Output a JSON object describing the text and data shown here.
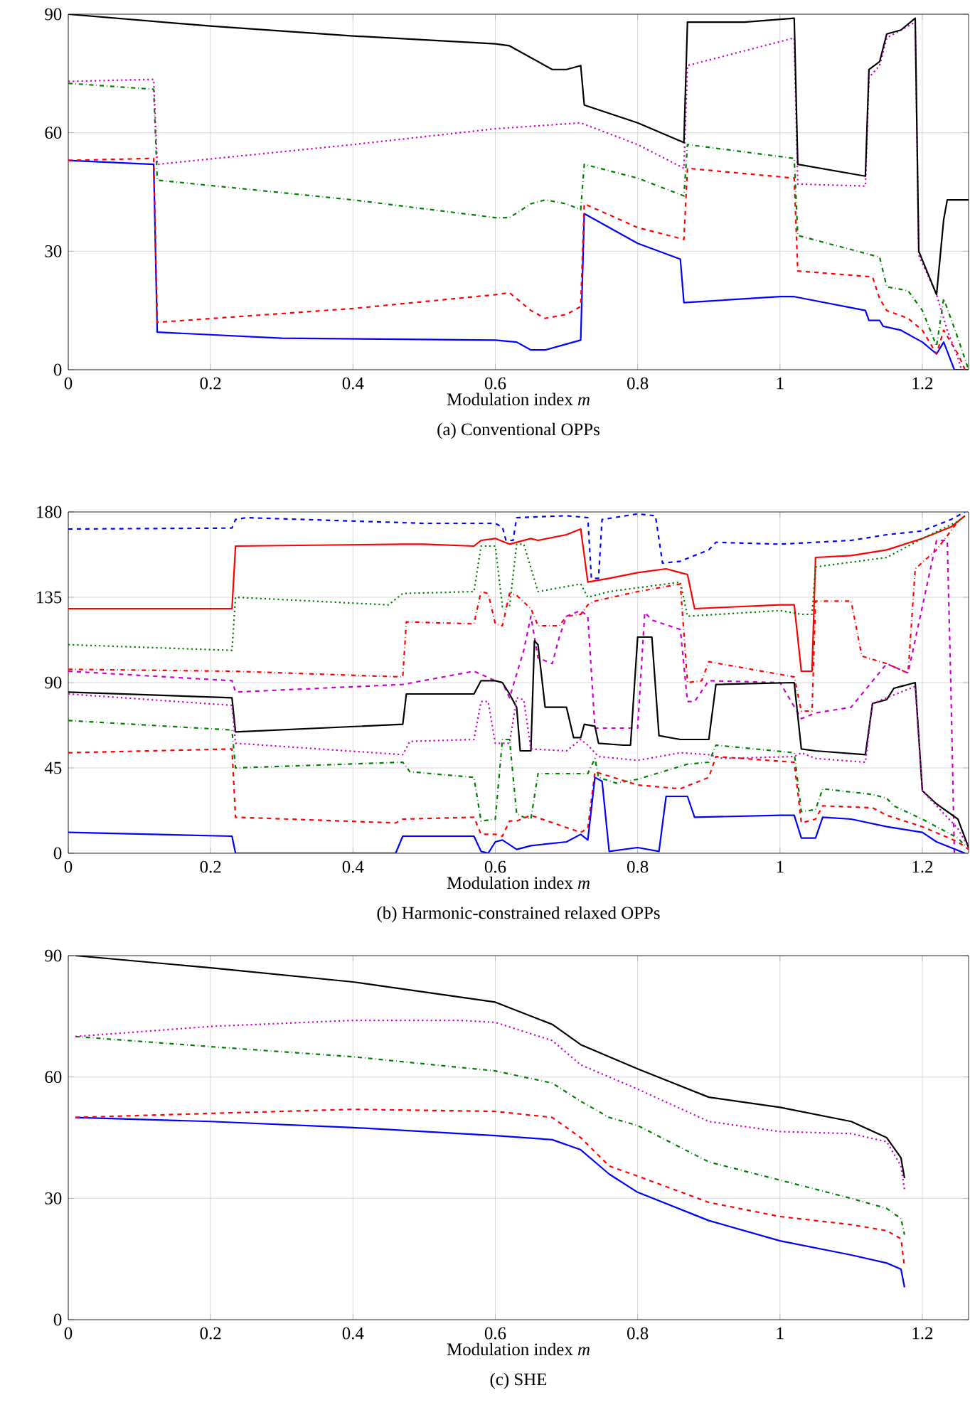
{
  "chart_data": [
    {
      "type": "line",
      "title": "(a) Conventional OPPs",
      "xlabel": "Modulation index *m*",
      "xlim": [
        0,
        1.265
      ],
      "ylim": [
        0,
        90
      ],
      "xticks": [
        0,
        0.2,
        0.4,
        0.6,
        0.8,
        1,
        1.2
      ],
      "yticks": [
        0,
        30,
        60,
        90
      ],
      "grid": true,
      "series": [
        {
          "color": "#0000ff",
          "line_style": "solid",
          "x": [
            0,
            0.12,
            0.125,
            0.3,
            0.6,
            0.63,
            0.65,
            0.67,
            0.7,
            0.72,
            0.725,
            0.8,
            0.86,
            0.865,
            1.0,
            1.02,
            1.12,
            1.125,
            1.14,
            1.145,
            1.17,
            1.2,
            1.22,
            1.23,
            1.245,
            1.265
          ],
          "values": [
            53,
            52,
            9.5,
            8,
            7.5,
            7,
            5,
            5,
            6.5,
            7.5,
            39.5,
            32,
            28,
            17,
            18.5,
            18.5,
            15,
            12.5,
            12.5,
            11,
            10,
            7,
            4,
            7,
            0,
            0
          ]
        },
        {
          "color": "#ff0000",
          "line_style": "dashed",
          "x": [
            0,
            0.12,
            0.125,
            0.4,
            0.6,
            0.62,
            0.65,
            0.67,
            0.7,
            0.72,
            0.725,
            0.8,
            0.865,
            0.87,
            1.02,
            1.025,
            1.13,
            1.14,
            1.15,
            1.18,
            1.2,
            1.22,
            1.23,
            1.25,
            1.26
          ],
          "values": [
            53,
            53.5,
            12,
            15.5,
            19,
            19.5,
            15,
            13,
            14,
            16,
            42,
            36,
            33,
            51,
            48.5,
            25,
            23.5,
            18,
            15,
            13,
            10,
            4,
            10,
            4,
            0
          ]
        },
        {
          "color": "#007f00",
          "line_style": "dashdotted",
          "x": [
            0,
            0.12,
            0.125,
            0.4,
            0.6,
            0.62,
            0.65,
            0.67,
            0.7,
            0.72,
            0.725,
            0.8,
            0.865,
            0.87,
            1.02,
            1.025,
            1.14,
            1.15,
            1.18,
            1.2,
            1.22,
            1.23,
            1.25,
            1.265
          ],
          "values": [
            72.5,
            71,
            48,
            43,
            38.5,
            38.5,
            42,
            43,
            42,
            40.5,
            52,
            48.5,
            44,
            57,
            53.5,
            34,
            28.5,
            21,
            20,
            15,
            6,
            18,
            8,
            0
          ]
        },
        {
          "color": "#cc00cc",
          "line_style": "dotted",
          "x": [
            0,
            0.12,
            0.125,
            0.4,
            0.6,
            0.72,
            0.8,
            0.865,
            0.87,
            1.02,
            1.025,
            1.12,
            1.125,
            1.14,
            1.15,
            1.19,
            1.195,
            1.22,
            1.235,
            1.25,
            1.255
          ],
          "values": [
            73,
            73.5,
            52,
            57,
            61,
            62.5,
            57,
            51,
            77,
            84,
            47,
            46.5,
            74,
            77,
            84,
            88,
            29,
            19,
            10,
            3,
            0
          ]
        },
        {
          "color": "#000000",
          "line_style": "solid",
          "x": [
            0,
            0.2,
            0.4,
            0.6,
            0.62,
            0.65,
            0.68,
            0.7,
            0.72,
            0.725,
            0.8,
            0.865,
            0.87,
            0.95,
            1.02,
            1.025,
            1.12,
            1.125,
            1.14,
            1.15,
            1.17,
            1.19,
            1.195,
            1.22,
            1.23,
            1.235,
            1.265
          ],
          "values": [
            90,
            87,
            84.5,
            82.5,
            82,
            79,
            76,
            76,
            77,
            67,
            62.5,
            57.5,
            88,
            88,
            89,
            52,
            49,
            76,
            78,
            85,
            86,
            89,
            30,
            19,
            38,
            43,
            43
          ]
        }
      ]
    },
    {
      "type": "line",
      "title": "(b) Harmonic-constrained relaxed OPPs",
      "xlabel": "Modulation index *m*",
      "xlim": [
        0,
        1.265
      ],
      "ylim": [
        0,
        180
      ],
      "xticks": [
        0,
        0.2,
        0.4,
        0.6,
        0.8,
        1,
        1.2
      ],
      "yticks": [
        0,
        45,
        90,
        135,
        180
      ],
      "grid": true,
      "series": [
        {
          "color": "#0000ff",
          "line_style": "dashed",
          "x": [
            0,
            0.23,
            0.235,
            0.25,
            0.5,
            0.6,
            0.61,
            0.615,
            0.625,
            0.63,
            0.7,
            0.73,
            0.735,
            0.745,
            0.75,
            0.8,
            0.825,
            0.835,
            0.86,
            0.9,
            0.91,
            1.0,
            1.1,
            1.15,
            1.2,
            1.24,
            1.26
          ],
          "values": [
            171,
            171.5,
            176,
            177,
            174,
            174,
            172,
            165,
            165,
            177,
            178,
            177,
            145,
            145,
            176,
            179,
            178,
            153,
            154,
            160,
            164,
            163,
            165,
            168,
            170,
            176,
            180
          ]
        },
        {
          "color": "#ff0000",
          "line_style": "solid",
          "x": [
            0,
            0.23,
            0.235,
            0.47,
            0.5,
            0.57,
            0.58,
            0.6,
            0.62,
            0.65,
            0.66,
            0.7,
            0.72,
            0.73,
            0.76,
            0.8,
            0.84,
            0.86,
            0.87,
            0.88,
            1.0,
            1.02,
            1.03,
            1.045,
            1.05,
            1.1,
            1.15,
            1.2,
            1.24,
            1.26
          ],
          "values": [
            129,
            129,
            162,
            163,
            163,
            162,
            165,
            166,
            163,
            166,
            165,
            168,
            171,
            143,
            145,
            148,
            150,
            148,
            147,
            129,
            131,
            131,
            96,
            96,
            156,
            157,
            160,
            166,
            172,
            178
          ]
        },
        {
          "color": "#007f00",
          "line_style": "dotted",
          "x": [
            0,
            0.23,
            0.235,
            0.45,
            0.47,
            0.57,
            0.58,
            0.6,
            0.61,
            0.62,
            0.63,
            0.64,
            0.66,
            0.72,
            0.73,
            0.76,
            0.8,
            0.86,
            0.87,
            1.0,
            1.03,
            1.045,
            1.05,
            1.15,
            1.2,
            1.25,
            1.26
          ],
          "values": [
            110,
            107,
            135,
            131,
            137,
            138,
            162,
            162,
            130,
            130,
            163,
            163,
            138,
            142,
            135,
            138,
            140,
            143,
            125,
            128,
            126,
            126,
            151,
            156,
            166,
            175,
            178
          ]
        },
        {
          "color": "#ff0000",
          "line_style": "dashdotted",
          "x": [
            0,
            0.23,
            0.47,
            0.475,
            0.57,
            0.58,
            0.59,
            0.6,
            0.61,
            0.62,
            0.63,
            0.65,
            0.66,
            0.69,
            0.7,
            0.72,
            0.73,
            0.74,
            0.8,
            0.86,
            0.87,
            0.89,
            0.9,
            1.02,
            1.03,
            1.045,
            1.05,
            1.1,
            1.115,
            1.15,
            1.18,
            1.19,
            1.22,
            1.25
          ],
          "values": [
            97,
            96,
            93,
            122,
            121,
            138,
            137,
            121,
            120,
            137,
            136,
            129,
            120,
            120,
            125,
            126,
            131,
            133,
            138,
            142,
            90,
            91,
            101,
            93,
            75,
            75,
            133,
            133,
            104,
            100,
            95,
            150,
            160,
            175
          ]
        },
        {
          "color": "#cc00cc",
          "line_style": "dashed",
          "x": [
            0,
            0.23,
            0.235,
            0.47,
            0.57,
            0.6,
            0.61,
            0.62,
            0.64,
            0.65,
            0.66,
            0.68,
            0.69,
            0.7,
            0.72,
            0.73,
            0.74,
            0.8,
            0.81,
            0.82,
            0.86,
            0.87,
            0.88,
            0.9,
            1.0,
            1.03,
            1.05,
            1.1,
            1.15,
            1.18,
            1.22,
            1.235,
            1.24,
            1.245
          ],
          "values": [
            96,
            91,
            85,
            89,
            96,
            91,
            90,
            82,
            107,
            125,
            103,
            100,
            114,
            125,
            128,
            125,
            66,
            66,
            127,
            123,
            118,
            80,
            80,
            91,
            90,
            71,
            74,
            77,
            100,
            95,
            165,
            165,
            90,
            0
          ]
        },
        {
          "color": "#000000",
          "line_style": "solid",
          "x": [
            0,
            0.23,
            0.235,
            0.47,
            0.475,
            0.57,
            0.58,
            0.6,
            0.61,
            0.62,
            0.63,
            0.635,
            0.65,
            0.655,
            0.66,
            0.67,
            0.7,
            0.71,
            0.72,
            0.725,
            0.74,
            0.745,
            0.78,
            0.79,
            0.8,
            0.82,
            0.83,
            0.86,
            0.9,
            0.91,
            1.02,
            1.03,
            1.05,
            1.12,
            1.13,
            1.15,
            1.16,
            1.19,
            1.2,
            1.22,
            1.25,
            1.265
          ],
          "values": [
            85,
            82,
            64,
            68,
            84,
            84,
            91,
            91,
            90,
            84,
            77,
            54,
            54,
            112,
            110,
            77,
            77,
            61,
            61,
            68,
            67,
            58,
            57,
            57,
            114,
            114,
            62,
            60,
            60,
            89,
            90,
            55,
            54,
            52,
            79,
            81,
            87,
            90,
            33,
            26,
            18,
            3
          ]
        },
        {
          "color": "#cc00cc",
          "line_style": "dotted",
          "x": [
            0,
            0.23,
            0.235,
            0.47,
            0.48,
            0.57,
            0.58,
            0.59,
            0.6,
            0.62,
            0.63,
            0.64,
            0.65,
            0.7,
            0.72,
            0.73,
            0.745,
            0.8,
            0.86,
            0.9,
            0.92,
            1.02,
            1.03,
            1.05,
            1.12,
            1.13,
            1.15,
            1.17,
            1.19,
            1.2,
            1.25,
            1.265
          ],
          "values": [
            84,
            78,
            58,
            52,
            59,
            60,
            80,
            80,
            58,
            58,
            82,
            81,
            55,
            54,
            60,
            57,
            51,
            49,
            53,
            52,
            50,
            51,
            53,
            50,
            48,
            79,
            82,
            85,
            88,
            33,
            13,
            3
          ]
        },
        {
          "color": "#007f00",
          "line_style": "dashdotted",
          "x": [
            0,
            0.23,
            0.235,
            0.47,
            0.48,
            0.57,
            0.58,
            0.6,
            0.61,
            0.62,
            0.63,
            0.64,
            0.65,
            0.66,
            0.73,
            0.74,
            0.745,
            0.77,
            0.8,
            0.87,
            0.9,
            0.91,
            1.02,
            1.03,
            1.05,
            1.06,
            1.13,
            1.15,
            1.16,
            1.2,
            1.25,
            1.265
          ],
          "values": [
            70,
            65,
            45,
            48,
            43,
            40,
            17,
            18,
            60,
            60,
            21,
            19,
            18,
            42,
            42,
            50,
            40,
            37,
            39,
            47,
            48,
            57,
            53,
            22,
            23,
            34,
            31,
            29,
            25,
            18,
            8,
            2
          ]
        },
        {
          "color": "#ff0000",
          "line_style": "dashed",
          "x": [
            0,
            0.23,
            0.235,
            0.46,
            0.47,
            0.57,
            0.58,
            0.6,
            0.61,
            0.62,
            0.63,
            0.65,
            0.72,
            0.73,
            0.74,
            0.8,
            0.86,
            0.9,
            0.91,
            1.02,
            1.03,
            1.05,
            1.06,
            1.13,
            1.15,
            1.2,
            1.25,
            1.265
          ],
          "values": [
            53,
            55,
            19,
            16,
            18,
            19,
            10,
            10,
            9,
            17,
            17,
            20,
            11,
            13,
            43,
            36,
            34,
            40,
            51,
            48,
            16,
            18,
            25,
            24,
            20,
            14,
            6,
            2
          ]
        },
        {
          "color": "#0000ff",
          "line_style": "solid",
          "x": [
            0,
            0.23,
            0.235,
            0.46,
            0.47,
            0.57,
            0.58,
            0.59,
            0.6,
            0.61,
            0.63,
            0.65,
            0.7,
            0.72,
            0.73,
            0.74,
            0.75,
            0.76,
            0.8,
            0.83,
            0.84,
            0.87,
            0.88,
            1.0,
            1.02,
            1.03,
            1.05,
            1.06,
            1.1,
            1.15,
            1.2,
            1.22,
            1.24,
            1.26
          ],
          "values": [
            11,
            9,
            0,
            0,
            9,
            9,
            1,
            0,
            6,
            7,
            2,
            4,
            6,
            10,
            7,
            40,
            38,
            1,
            3,
            1,
            30,
            30,
            19,
            20,
            20,
            8,
            8,
            19,
            18,
            14,
            11,
            6,
            3,
            0
          ]
        }
      ]
    },
    {
      "type": "line",
      "title": "(c) SHE",
      "xlabel": "Modulation index *m*",
      "xlim": [
        0,
        1.265
      ],
      "ylim": [
        0,
        90
      ],
      "xticks": [
        0,
        0.2,
        0.4,
        0.6,
        0.8,
        1,
        1.2
      ],
      "yticks": [
        0,
        30,
        60,
        90
      ],
      "grid": true,
      "series": [
        {
          "color": "#0000ff",
          "line_style": "solid",
          "x": [
            0.01,
            0.2,
            0.4,
            0.6,
            0.68,
            0.72,
            0.76,
            0.8,
            0.9,
            1.0,
            1.1,
            1.15,
            1.17,
            1.175
          ],
          "values": [
            50,
            49,
            47.5,
            45.5,
            44.5,
            42,
            36,
            31.5,
            24.5,
            19.5,
            16,
            14,
            12.5,
            8
          ]
        },
        {
          "color": "#ff0000",
          "line_style": "dashed",
          "x": [
            0.01,
            0.2,
            0.4,
            0.6,
            0.68,
            0.72,
            0.76,
            0.8,
            0.9,
            1.0,
            1.1,
            1.15,
            1.17,
            1.175
          ],
          "values": [
            50,
            51,
            52,
            51.5,
            50,
            45,
            38,
            35.5,
            29,
            25.5,
            23.5,
            22,
            20,
            13
          ]
        },
        {
          "color": "#007f00",
          "line_style": "dashdotted",
          "x": [
            0.01,
            0.2,
            0.4,
            0.6,
            0.68,
            0.72,
            0.76,
            0.8,
            0.9,
            1.0,
            1.1,
            1.15,
            1.17,
            1.175
          ],
          "values": [
            70,
            67.5,
            65,
            61.5,
            58.5,
            54,
            50,
            48,
            39,
            34.5,
            30,
            27.5,
            25,
            21
          ]
        },
        {
          "color": "#cc00cc",
          "line_style": "dotted",
          "x": [
            0.01,
            0.2,
            0.4,
            0.55,
            0.6,
            0.68,
            0.72,
            0.8,
            0.9,
            1.0,
            1.1,
            1.15,
            1.17,
            1.175
          ],
          "values": [
            70,
            72.5,
            74,
            74,
            73.5,
            69,
            63,
            57,
            49,
            46.5,
            46,
            44,
            38,
            32
          ]
        },
        {
          "color": "#000000",
          "line_style": "solid",
          "x": [
            0.01,
            0.2,
            0.4,
            0.6,
            0.68,
            0.72,
            0.8,
            0.9,
            1.0,
            1.1,
            1.15,
            1.17,
            1.175
          ],
          "values": [
            90,
            87,
            83.5,
            78.5,
            73,
            68,
            62,
            55,
            52.5,
            49,
            45,
            40,
            35
          ]
        }
      ]
    }
  ]
}
